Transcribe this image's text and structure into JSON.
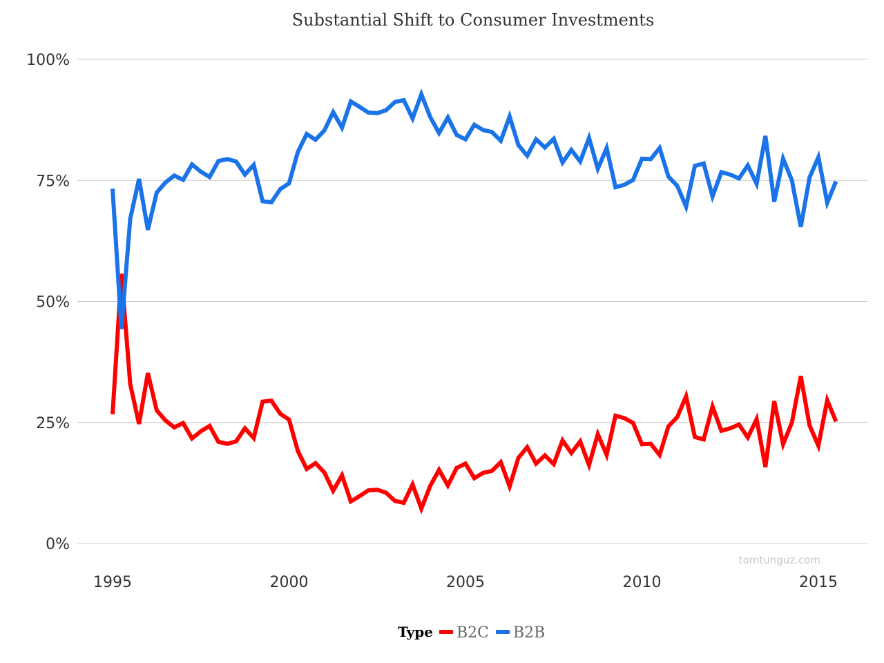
{
  "chart_data": {
    "type": "line",
    "title": "Substantial Shift to Consumer Investments",
    "xlabel": "",
    "ylabel": "",
    "x_ticks": [
      "1995",
      "2000",
      "2005",
      "2010",
      "2015"
    ],
    "y_ticks": [
      "0%",
      "25%",
      "50%",
      "75%",
      "100%"
    ],
    "xlim": [
      1995,
      2016.25
    ],
    "ylim": [
      0,
      100
    ],
    "grid": true,
    "legend_position": "bottom",
    "legend_title": "Type",
    "watermark": "tomtunguz.com",
    "x": [
      1995.0,
      1995.25,
      1995.5,
      1995.75,
      1996.0,
      1996.25,
      1996.5,
      1996.75,
      1997.0,
      1997.25,
      1997.5,
      1997.75,
      1998.0,
      1998.25,
      1998.5,
      1998.75,
      1999.0,
      1999.25,
      1999.5,
      1999.75,
      2000.0,
      2000.25,
      2000.5,
      2000.75,
      2001.0,
      2001.25,
      2001.5,
      2001.75,
      2002.0,
      2002.25,
      2002.5,
      2002.75,
      2003.0,
      2003.25,
      2003.5,
      2003.75,
      2004.0,
      2004.25,
      2004.5,
      2004.75,
      2005.0,
      2005.25,
      2005.5,
      2005.75,
      2006.0,
      2006.25,
      2006.5,
      2006.75,
      2007.0,
      2007.25,
      2007.5,
      2007.75,
      2008.0,
      2008.25,
      2008.5,
      2008.75,
      2009.0,
      2009.25,
      2009.5,
      2009.75,
      2010.0,
      2010.25,
      2010.5,
      2010.75,
      2011.0,
      2011.25,
      2011.5,
      2011.75,
      2012.0,
      2012.25,
      2012.5,
      2012.75,
      2013.0,
      2013.25,
      2013.5,
      2013.75,
      2014.0,
      2014.25,
      2014.5,
      2014.75,
      2015.0,
      2015.25,
      2015.5
    ],
    "series": [
      {
        "name": "B2C",
        "color": "#ff0000",
        "values": [
          26.7,
          55.7,
          32.9,
          24.7,
          35.2,
          27.5,
          25.4,
          24.0,
          24.9,
          21.7,
          23.2,
          24.3,
          21.0,
          20.6,
          21.1,
          23.8,
          21.8,
          29.3,
          29.5,
          26.8,
          25.6,
          19.1,
          15.4,
          16.6,
          14.7,
          10.9,
          14.1,
          8.7,
          9.8,
          11.0,
          11.1,
          10.5,
          8.8,
          8.4,
          12.2,
          7.2,
          11.9,
          15.2,
          12.0,
          15.6,
          16.5,
          13.5,
          14.6,
          15.0,
          16.8,
          11.8,
          17.7,
          19.9,
          16.5,
          18.2,
          16.4,
          21.3,
          18.7,
          21.1,
          16.2,
          22.6,
          18.3,
          26.4,
          25.9,
          24.9,
          20.5,
          20.6,
          18.3,
          24.2,
          26.1,
          30.4,
          22.0,
          21.5,
          28.3,
          23.3,
          23.8,
          24.6,
          21.9,
          25.7,
          15.8,
          29.4,
          20.5,
          25.0,
          34.6,
          24.4,
          20.2,
          29.6,
          25.2
        ]
      },
      {
        "name": "B2B",
        "color": "#1a73e8",
        "values": [
          73.3,
          44.3,
          67.1,
          75.3,
          64.8,
          72.5,
          74.6,
          76.0,
          75.1,
          78.3,
          76.8,
          75.7,
          79.0,
          79.4,
          78.9,
          76.2,
          78.2,
          70.7,
          70.5,
          73.2,
          74.4,
          80.9,
          84.6,
          83.4,
          85.3,
          89.1,
          85.9,
          91.3,
          90.2,
          89.0,
          88.9,
          89.5,
          91.2,
          91.6,
          87.8,
          92.8,
          88.1,
          84.8,
          88.0,
          84.4,
          83.5,
          86.5,
          85.4,
          85.0,
          83.2,
          88.2,
          82.3,
          80.1,
          83.5,
          81.8,
          83.6,
          78.7,
          81.3,
          78.9,
          83.8,
          77.4,
          81.7,
          73.6,
          74.1,
          75.1,
          79.5,
          79.4,
          81.7,
          75.8,
          73.9,
          69.6,
          78.0,
          78.5,
          71.7,
          76.7,
          76.2,
          75.4,
          78.1,
          74.3,
          84.2,
          70.6,
          79.5,
          75.0,
          65.4,
          75.6,
          79.8,
          70.4,
          74.8
        ]
      }
    ]
  }
}
